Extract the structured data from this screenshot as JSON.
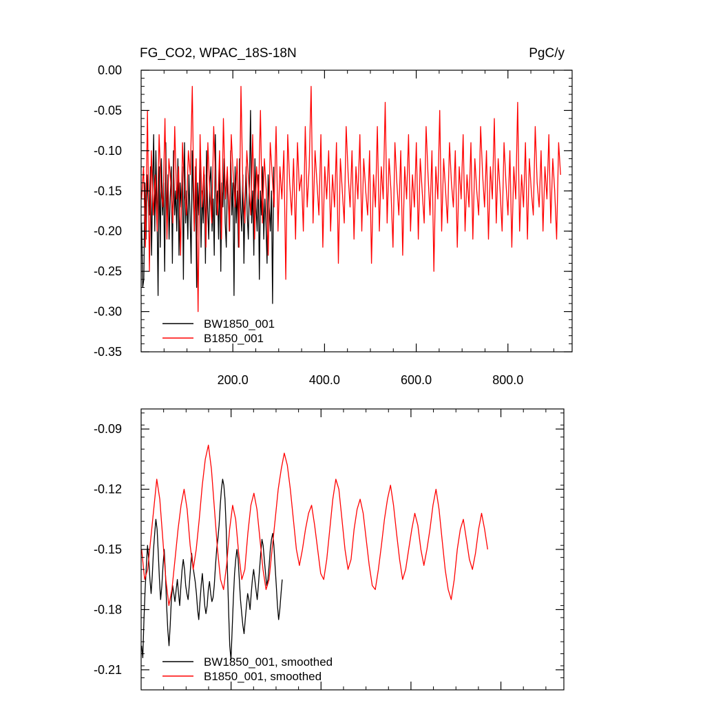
{
  "chart_data": [
    {
      "type": "line",
      "title": "FG_CO2, WPAC_18S-18N",
      "units": "PgC/y",
      "xlabel": "",
      "ylabel": "",
      "xlim": [
        0,
        940
      ],
      "ylim": [
        -0.35,
        0.0
      ],
      "x_ticks": [
        200,
        400,
        600,
        800
      ],
      "x_tick_labels": [
        "200.0",
        "400.0",
        "600.0",
        "800.0"
      ],
      "y_ticks": [
        0.0,
        -0.05,
        -0.1,
        -0.15,
        -0.2,
        -0.25,
        -0.3,
        -0.35
      ],
      "y_tick_labels": [
        "0.00",
        "-0.05",
        "-0.10",
        "-0.15",
        "-0.20",
        "-0.25",
        "-0.30",
        "-0.35"
      ],
      "legend_position": "bottom-left",
      "series": [
        {
          "name": "BW1850_001",
          "color": "#000000",
          "x_start": 1,
          "x_step": 1,
          "values": [
            -0.19,
            -0.27,
            -0.26,
            -0.14,
            -0.21,
            -0.13,
            -0.16,
            -0.18,
            -0.12,
            -0.23,
            -0.15,
            -0.08,
            -0.2,
            -0.1,
            -0.17,
            -0.28,
            -0.12,
            -0.22,
            -0.11,
            -0.18,
            -0.14,
            -0.25,
            -0.09,
            -0.19,
            -0.13,
            -0.21,
            -0.16,
            -0.12,
            -0.24,
            -0.1,
            -0.18,
            -0.15,
            -0.2,
            -0.11,
            -0.23,
            -0.14,
            -0.17,
            -0.12,
            -0.26,
            -0.09,
            -0.19,
            -0.15,
            -0.21,
            -0.13,
            -0.18,
            -0.24,
            -0.1,
            -0.16,
            -0.2,
            -0.12,
            -0.27,
            -0.14,
            -0.18,
            -0.11,
            -0.22,
            -0.15,
            -0.19,
            -0.13,
            -0.24,
            -0.1,
            -0.17,
            -0.21,
            -0.14,
            -0.12,
            -0.2,
            -0.16,
            -0.23,
            -0.08,
            -0.18,
            -0.15,
            -0.21,
            -0.12,
            -0.25,
            -0.14,
            -0.17,
            -0.11,
            -0.19,
            -0.22,
            -0.13,
            -0.16,
            -0.2,
            -0.1,
            -0.18,
            -0.14,
            -0.28,
            -0.12,
            -0.19,
            -0.15,
            -0.22,
            -0.11,
            -0.17,
            -0.2,
            -0.13,
            -0.24,
            -0.16,
            -0.12,
            -0.18,
            -0.21,
            -0.14,
            -0.05,
            -0.19,
            -0.15,
            -0.23,
            -0.11,
            -0.17,
            -0.2,
            -0.13,
            -0.26,
            -0.15,
            -0.18,
            -0.12,
            -0.21,
            -0.16,
            -0.19,
            -0.24,
            -0.13,
            -0.17,
            -0.2,
            -0.15,
            -0.29,
            -0.12
          ]
        },
        {
          "name": "B1850_001",
          "color": "#ff0000",
          "x_start": 1,
          "x_step": 1,
          "values": [
            -0.16,
            -0.12,
            -0.22,
            -0.05,
            -0.25,
            -0.1,
            -0.18,
            -0.13,
            -0.2,
            -0.08,
            -0.15,
            -0.17,
            -0.06,
            -0.21,
            -0.11,
            -0.14,
            -0.19,
            -0.07,
            -0.16,
            -0.12,
            -0.23,
            -0.09,
            -0.15,
            -0.18,
            -0.1,
            -0.13,
            -0.02,
            -0.2,
            -0.11,
            -0.3,
            -0.08,
            -0.17,
            -0.12,
            -0.22,
            -0.09,
            -0.15,
            -0.19,
            -0.07,
            -0.14,
            -0.18,
            -0.1,
            -0.21,
            -0.06,
            -0.16,
            -0.12,
            -0.2,
            -0.08,
            -0.13,
            -0.17,
            -0.11,
            -0.22,
            -0.02,
            -0.15,
            -0.19,
            -0.1,
            -0.14,
            -0.18,
            -0.08,
            -0.21,
            -0.12,
            -0.16,
            -0.05,
            -0.19,
            -0.11,
            -0.15,
            -0.23,
            -0.09,
            -0.13,
            -0.17,
            -0.07,
            -0.2,
            -0.12,
            -0.16,
            -0.1,
            -0.26,
            -0.08,
            -0.14,
            -0.18,
            -0.11,
            -0.21,
            -0.09,
            -0.15,
            -0.13,
            -0.2,
            -0.07,
            -0.17,
            -0.12,
            -0.02,
            -0.19,
            -0.1,
            -0.14,
            -0.18,
            -0.08,
            -0.22,
            -0.12,
            -0.16,
            -0.1,
            -0.2,
            -0.13,
            -0.17,
            -0.09,
            -0.24,
            -0.11,
            -0.15,
            -0.19,
            -0.07,
            -0.13,
            -0.17,
            -0.1,
            -0.21,
            -0.12,
            -0.16,
            -0.08,
            -0.2,
            -0.11,
            -0.15,
            -0.18,
            -0.1,
            -0.24,
            -0.13,
            -0.17,
            -0.07,
            -0.2,
            -0.12,
            -0.16,
            -0.04,
            -0.19,
            -0.11,
            -0.15,
            -0.22,
            -0.09,
            -0.14,
            -0.18,
            -0.1,
            -0.23,
            -0.12,
            -0.16,
            -0.08,
            -0.2,
            -0.13,
            -0.17,
            -0.09,
            -0.21,
            -0.11,
            -0.15,
            -0.19,
            -0.07,
            -0.13,
            -0.18,
            -0.1,
            -0.25,
            -0.12,
            -0.16,
            -0.05,
            -0.2,
            -0.11,
            -0.15,
            -0.19,
            -0.09,
            -0.14,
            -0.17,
            -0.1,
            -0.22,
            -0.12,
            -0.16,
            -0.08,
            -0.2,
            -0.13,
            -0.17,
            -0.09,
            -0.21,
            -0.11,
            -0.15,
            -0.18,
            -0.07,
            -0.13,
            -0.17,
            -0.1,
            -0.21,
            -0.12,
            -0.16,
            -0.06,
            -0.19,
            -0.11,
            -0.15,
            -0.2,
            -0.09,
            -0.14,
            -0.18,
            -0.1,
            -0.22,
            -0.12,
            -0.16,
            -0.04,
            -0.2,
            -0.13,
            -0.17,
            -0.09,
            -0.21,
            -0.11,
            -0.15,
            -0.18,
            -0.07,
            -0.14,
            -0.17,
            -0.1,
            -0.2,
            -0.12,
            -0.16,
            -0.08,
            -0.19,
            -0.11,
            -0.15,
            -0.21,
            -0.09,
            -0.13
          ]
        }
      ]
    },
    {
      "type": "line",
      "title": "",
      "xlabel": "",
      "ylabel": "",
      "xlim": [
        0,
        940
      ],
      "ylim": [
        -0.22,
        -0.08
      ],
      "x_ticks": [
        200,
        400,
        600,
        800
      ],
      "x_tick_labels": [],
      "y_ticks": [
        -0.09,
        -0.12,
        -0.15,
        -0.18,
        -0.21
      ],
      "y_tick_labels": [
        "-0.09",
        "-0.12",
        "-0.15",
        "-0.18",
        "-0.21"
      ],
      "legend_position": "bottom-left",
      "series": [
        {
          "name": "BW1850_001, smoothed",
          "color": "#000000",
          "x_start": 1,
          "x_step": 2.5,
          "values": [
            -0.198,
            -0.204,
            -0.185,
            -0.17,
            -0.158,
            -0.148,
            -0.155,
            -0.165,
            -0.172,
            -0.163,
            -0.15,
            -0.142,
            -0.135,
            -0.14,
            -0.152,
            -0.165,
            -0.175,
            -0.168,
            -0.158,
            -0.15,
            -0.162,
            -0.178,
            -0.19,
            -0.198,
            -0.188,
            -0.175,
            -0.168,
            -0.172,
            -0.176,
            -0.17,
            -0.165,
            -0.172,
            -0.178,
            -0.168,
            -0.16,
            -0.155,
            -0.16,
            -0.168,
            -0.172,
            -0.175,
            -0.168,
            -0.16,
            -0.152,
            -0.158,
            -0.162,
            -0.166,
            -0.172,
            -0.18,
            -0.185,
            -0.176,
            -0.168,
            -0.162,
            -0.17,
            -0.178,
            -0.182,
            -0.178,
            -0.17,
            -0.166,
            -0.172,
            -0.176,
            -0.174,
            -0.168,
            -0.158,
            -0.15,
            -0.145,
            -0.138,
            -0.128,
            -0.12,
            -0.115,
            -0.118,
            -0.125,
            -0.14,
            -0.16,
            -0.18,
            -0.198,
            -0.205,
            -0.19,
            -0.175,
            -0.162,
            -0.155,
            -0.15,
            -0.155,
            -0.165,
            -0.175,
            -0.182,
            -0.188,
            -0.192,
            -0.185,
            -0.178,
            -0.172,
            -0.175,
            -0.18,
            -0.172,
            -0.165,
            -0.16,
            -0.165,
            -0.17,
            -0.175,
            -0.168,
            -0.16,
            -0.152,
            -0.145,
            -0.148,
            -0.155,
            -0.162,
            -0.168,
            -0.165,
            -0.158,
            -0.15,
            -0.145,
            -0.142,
            -0.148,
            -0.158,
            -0.168,
            -0.178,
            -0.185,
            -0.18,
            -0.172,
            -0.165
          ]
        },
        {
          "name": "B1850_001, smoothed",
          "color": "#ff0000",
          "x_start": 1,
          "x_step": 2.5,
          "values": [
            -0.15,
            -0.165,
            -0.16,
            -0.145,
            -0.13,
            -0.115,
            -0.125,
            -0.145,
            -0.165,
            -0.178,
            -0.17,
            -0.155,
            -0.14,
            -0.128,
            -0.12,
            -0.13,
            -0.148,
            -0.16,
            -0.15,
            -0.135,
            -0.118,
            -0.105,
            -0.098,
            -0.11,
            -0.13,
            -0.15,
            -0.165,
            -0.17,
            -0.158,
            -0.14,
            -0.128,
            -0.135,
            -0.152,
            -0.165,
            -0.16,
            -0.142,
            -0.128,
            -0.122,
            -0.13,
            -0.145,
            -0.16,
            -0.17,
            -0.165,
            -0.15,
            -0.135,
            -0.12,
            -0.11,
            -0.102,
            -0.108,
            -0.12,
            -0.135,
            -0.15,
            -0.158,
            -0.15,
            -0.14,
            -0.132,
            -0.128,
            -0.138,
            -0.15,
            -0.162,
            -0.165,
            -0.155,
            -0.14,
            -0.125,
            -0.115,
            -0.12,
            -0.135,
            -0.15,
            -0.16,
            -0.155,
            -0.14,
            -0.13,
            -0.125,
            -0.132,
            -0.145,
            -0.158,
            -0.168,
            -0.17,
            -0.16,
            -0.148,
            -0.135,
            -0.125,
            -0.118,
            -0.128,
            -0.142,
            -0.155,
            -0.165,
            -0.16,
            -0.15,
            -0.14,
            -0.132,
            -0.138,
            -0.15,
            -0.158,
            -0.15,
            -0.14,
            -0.128,
            -0.12,
            -0.13,
            -0.145,
            -0.16,
            -0.17,
            -0.175,
            -0.165,
            -0.15,
            -0.14,
            -0.135,
            -0.145,
            -0.155,
            -0.16,
            -0.152,
            -0.14,
            -0.132,
            -0.14,
            -0.15
          ]
        }
      ]
    }
  ]
}
